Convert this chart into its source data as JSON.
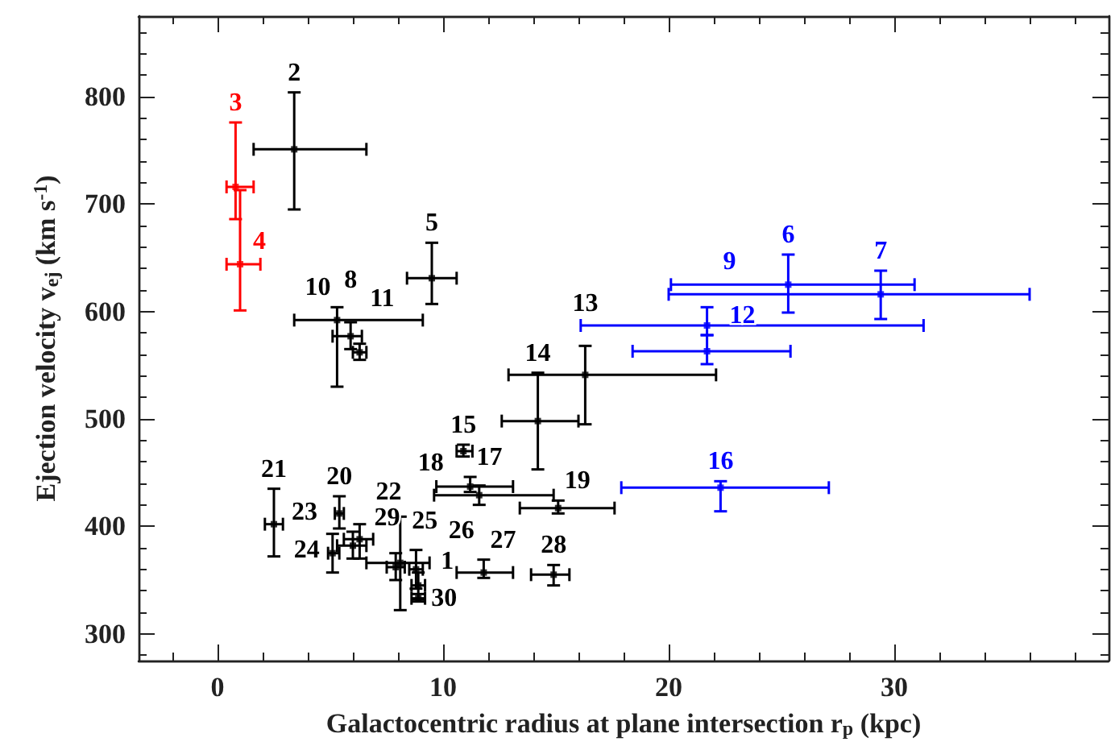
{
  "chart_data": {
    "type": "scatter",
    "xlabel": "Galactocentric radius at plane intersection r$_{p}$ (kpc)",
    "ylabel": "Ejection velocity v$_{ej}$ (km s$^{-1}$)",
    "grid": false,
    "xlim": [
      -3.5,
      39.5
    ],
    "ylim": [
      275,
      875
    ],
    "xticks": [
      {
        "value": -2,
        "label": null
      },
      0,
      {
        "value": 2,
        "label": null
      },
      {
        "value": 4,
        "label": null
      },
      {
        "value": 6,
        "label": null
      },
      {
        "value": 8,
        "label": null
      },
      10,
      {
        "value": 12,
        "label": null
      },
      {
        "value": 14,
        "label": null
      },
      {
        "value": 16,
        "label": null
      },
      {
        "value": 18,
        "label": null
      },
      20,
      {
        "value": 22,
        "label": null
      },
      {
        "value": 24,
        "label": null
      },
      {
        "value": 26,
        "label": null
      },
      {
        "value": 28,
        "label": null
      },
      30,
      {
        "value": 32,
        "label": null
      },
      {
        "value": 34,
        "label": null
      },
      {
        "value": 36,
        "label": null
      },
      {
        "value": 38,
        "label": null
      }
    ],
    "yticks": [
      {
        "value": 280,
        "label": null
      },
      300,
      {
        "value": 320,
        "label": null
      },
      {
        "value": 340,
        "label": null
      },
      {
        "value": 360,
        "label": null
      },
      {
        "value": 380,
        "label": null
      },
      400,
      {
        "value": 420,
        "label": null
      },
      {
        "value": 440,
        "label": null
      },
      {
        "value": 460,
        "label": null
      },
      {
        "value": 480,
        "label": null
      },
      500,
      {
        "value": 520,
        "label": null
      },
      {
        "value": 540,
        "label": null
      },
      {
        "value": 560,
        "label": null
      },
      {
        "value": 580,
        "label": null
      },
      600,
      {
        "value": 620,
        "label": null
      },
      {
        "value": 640,
        "label": null
      },
      {
        "value": 660,
        "label": null
      },
      {
        "value": 680,
        "label": null
      },
      700,
      {
        "value": 720,
        "label": null
      },
      {
        "value": 740,
        "label": null
      },
      {
        "value": 760,
        "label": null
      },
      {
        "value": 780,
        "label": null
      },
      800,
      {
        "value": 820,
        "label": null
      },
      {
        "value": 840,
        "label": null
      },
      {
        "value": 860,
        "label": null
      }
    ],
    "series": [
      {
        "color": "#000000",
        "x": [
          8.9,
          3.4,
          9.5,
          5.9,
          5.3,
          6.3,
          16.3,
          14.2,
          10.9,
          11.2,
          11.6,
          15.1,
          5.4,
          2.5,
          6.3,
          6.0,
          5.1,
          7.9,
          8.1,
          11.8,
          14.9,
          8.8,
          8.9
        ],
        "values": [
          333,
          751,
          631,
          577,
          592,
          562,
          541,
          498,
          470,
          437,
          429,
          417,
          412,
          402,
          388,
          382,
          375,
          362,
          366,
          357,
          355,
          360,
          345
        ],
        "xerrors": [
          [
            8.6,
            9.2
          ],
          [
            1.6,
            6.6
          ],
          [
            8.4,
            10.6
          ],
          [
            5.1,
            6.4
          ],
          [
            3.4,
            9.1
          ],
          [
            6.0,
            6.6
          ],
          [
            12.9,
            22.1
          ],
          [
            12.6,
            16.0
          ],
          [
            10.6,
            11.3
          ],
          [
            9.7,
            13.1
          ],
          [
            9.6,
            14.9
          ],
          [
            13.4,
            17.6
          ],
          [
            5.2,
            5.6
          ],
          [
            2.1,
            2.9
          ],
          [
            5.6,
            6.9
          ],
          [
            5.3,
            6.6
          ],
          [
            4.9,
            5.4
          ],
          [
            7.5,
            8.3
          ],
          [
            6.6,
            9.4
          ],
          [
            10.6,
            13.1
          ],
          [
            13.9,
            15.6
          ],
          [
            8.5,
            9.1
          ],
          [
            8.6,
            9.2
          ]
        ],
        "errors": [
          [
            330,
            337
          ],
          [
            695,
            804
          ],
          [
            607,
            664
          ],
          [
            565,
            590
          ],
          [
            530,
            604
          ],
          [
            555,
            570
          ],
          [
            495,
            568
          ],
          [
            453,
            543
          ],
          [
            465,
            476
          ],
          [
            432,
            446
          ],
          [
            420,
            438
          ],
          [
            412,
            424
          ],
          [
            398,
            428
          ],
          [
            372,
            435
          ],
          [
            370,
            402
          ],
          [
            370,
            395
          ],
          [
            357,
            393
          ],
          [
            350,
            375
          ],
          [
            322,
            409
          ],
          [
            352,
            369
          ],
          [
            345,
            364
          ],
          [
            342,
            378
          ],
          [
            332,
            357
          ]
        ]
      },
      {
        "color": "#ff0000",
        "x": [
          0.8,
          1.0
        ],
        "values": [
          716,
          644
        ],
        "xerrors": [
          [
            0.4,
            1.6
          ],
          [
            0.4,
            1.9
          ]
        ],
        "errors": [
          [
            686,
            776
          ],
          [
            601,
            713
          ]
        ]
      },
      {
        "color": "#0000ff",
        "x": [
          25.3,
          29.4,
          21.7,
          21.7,
          22.3
        ],
        "values": [
          625,
          616,
          587,
          563,
          436
        ],
        "xerrors": [
          [
            20.1,
            30.9
          ],
          [
            20.0,
            36.0
          ],
          [
            16.1,
            31.3
          ],
          [
            18.4,
            25.4
          ],
          [
            17.9,
            27.1
          ]
        ],
        "errors": [
          [
            599,
            653
          ],
          [
            593,
            638
          ],
          [
            578,
            604
          ],
          [
            551,
            578
          ],
          [
            414,
            442
          ]
        ]
      }
    ],
    "annotations": [
      {
        "text": "1",
        "x": 8.9,
        "y": 333
      },
      {
        "text": "2",
        "x": 3.4,
        "y": 751
      },
      {
        "text": "5",
        "x": 9.5,
        "y": 631
      },
      {
        "text": "8",
        "x": 5.9,
        "y": 577
      },
      {
        "text": "10",
        "x": 5.3,
        "y": 592
      },
      {
        "text": "11",
        "x": 6.3,
        "y": 562
      },
      {
        "text": "13",
        "x": 16.3,
        "y": 541
      },
      {
        "text": "14",
        "x": 14.2,
        "y": 498
      },
      {
        "text": "15",
        "x": 10.9,
        "y": 470
      },
      {
        "text": "17",
        "x": 11.2,
        "y": 437
      },
      {
        "text": "18",
        "x": 11.6,
        "y": 429
      },
      {
        "text": "19",
        "x": 15.1,
        "y": 417
      },
      {
        "text": "20",
        "x": 5.4,
        "y": 412
      },
      {
        "text": "21",
        "x": 2.5,
        "y": 402
      },
      {
        "text": "22",
        "x": 6.3,
        "y": 388
      },
      {
        "text": "23",
        "x": 6.0,
        "y": 382
      },
      {
        "text": "24",
        "x": 5.1,
        "y": 375
      },
      {
        "text": "25",
        "x": 7.9,
        "y": 362
      },
      {
        "text": "26",
        "x": 8.1,
        "y": 366
      },
      {
        "text": "27",
        "x": 11.8,
        "y": 357
      },
      {
        "text": "28",
        "x": 14.9,
        "y": 355
      },
      {
        "text": "29",
        "x": 8.8,
        "y": 360
      },
      {
        "text": "30",
        "x": 8.9,
        "y": 345
      },
      {
        "text": "3",
        "x": 0.8,
        "y": 716
      },
      {
        "text": "4",
        "x": 1.0,
        "y": 644
      },
      {
        "text": "6",
        "x": 25.3,
        "y": 625
      },
      {
        "text": "7",
        "x": 29.4,
        "y": 616
      },
      {
        "text": "9",
        "x": 21.7,
        "y": 587
      },
      {
        "text": "12",
        "x": 21.7,
        "y": 563
      },
      {
        "text": "16",
        "x": 22.3,
        "y": 436
      }
    ]
  }
}
